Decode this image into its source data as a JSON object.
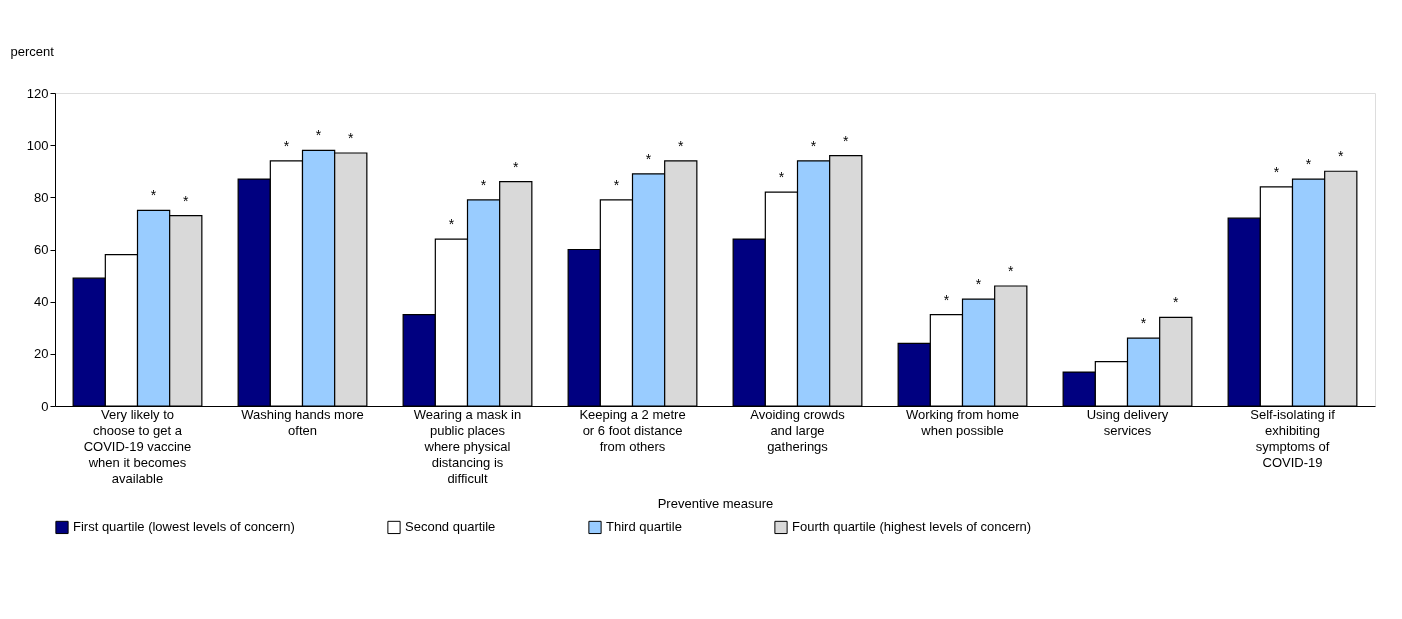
{
  "chart_data": {
    "type": "bar",
    "ylabel": "percent",
    "xlabel": "Preventive measure",
    "categories": [
      "Very likely to choose to get a COVID-19 vaccine when it becomes available",
      "Washing hands more often",
      "Wearing a mask in public places where physical distancing is difficult",
      "Keeping a 2 metre or 6 foot distance from others",
      "Avoiding crowds and large gatherings",
      "Working from home when possible",
      "Using delivery services",
      "Self-isolating if exhibiting symptoms of COVID-19"
    ],
    "series": [
      {
        "name": "First quartile (lowest levels of concern)",
        "color": "#000080",
        "values": [
          49,
          87,
          35,
          60,
          64,
          24,
          13,
          72
        ],
        "value_labels": [
          null,
          null,
          null,
          null,
          null,
          null,
          null,
          null
        ]
      },
      {
        "name": "Second quartile",
        "color": "#ffffff",
        "values": [
          58,
          94,
          64,
          79,
          82,
          35,
          17,
          84
        ],
        "value_labels": [
          null,
          "*",
          "*",
          "*",
          "*",
          "*",
          null,
          "*"
        ]
      },
      {
        "name": "Third quartile",
        "color": "#99ccff",
        "values": [
          75,
          98,
          79,
          89,
          94,
          41,
          26,
          87
        ],
        "value_labels": [
          "*",
          "*",
          "*",
          "*",
          "*",
          "*",
          "*",
          "*"
        ]
      },
      {
        "name": "Fourth quartile (highest levels of concern)",
        "color": "#d9d9d9",
        "values": [
          73,
          97,
          86,
          94,
          96,
          46,
          34,
          90
        ],
        "value_labels": [
          "*",
          "*",
          "*",
          "*",
          "*",
          "*",
          "*",
          "*"
        ]
      }
    ],
    "ylim": [
      0,
      120
    ],
    "yticks": [
      0,
      20,
      40,
      60,
      80,
      100,
      120
    ],
    "grid": false,
    "legend": "bottom"
  }
}
